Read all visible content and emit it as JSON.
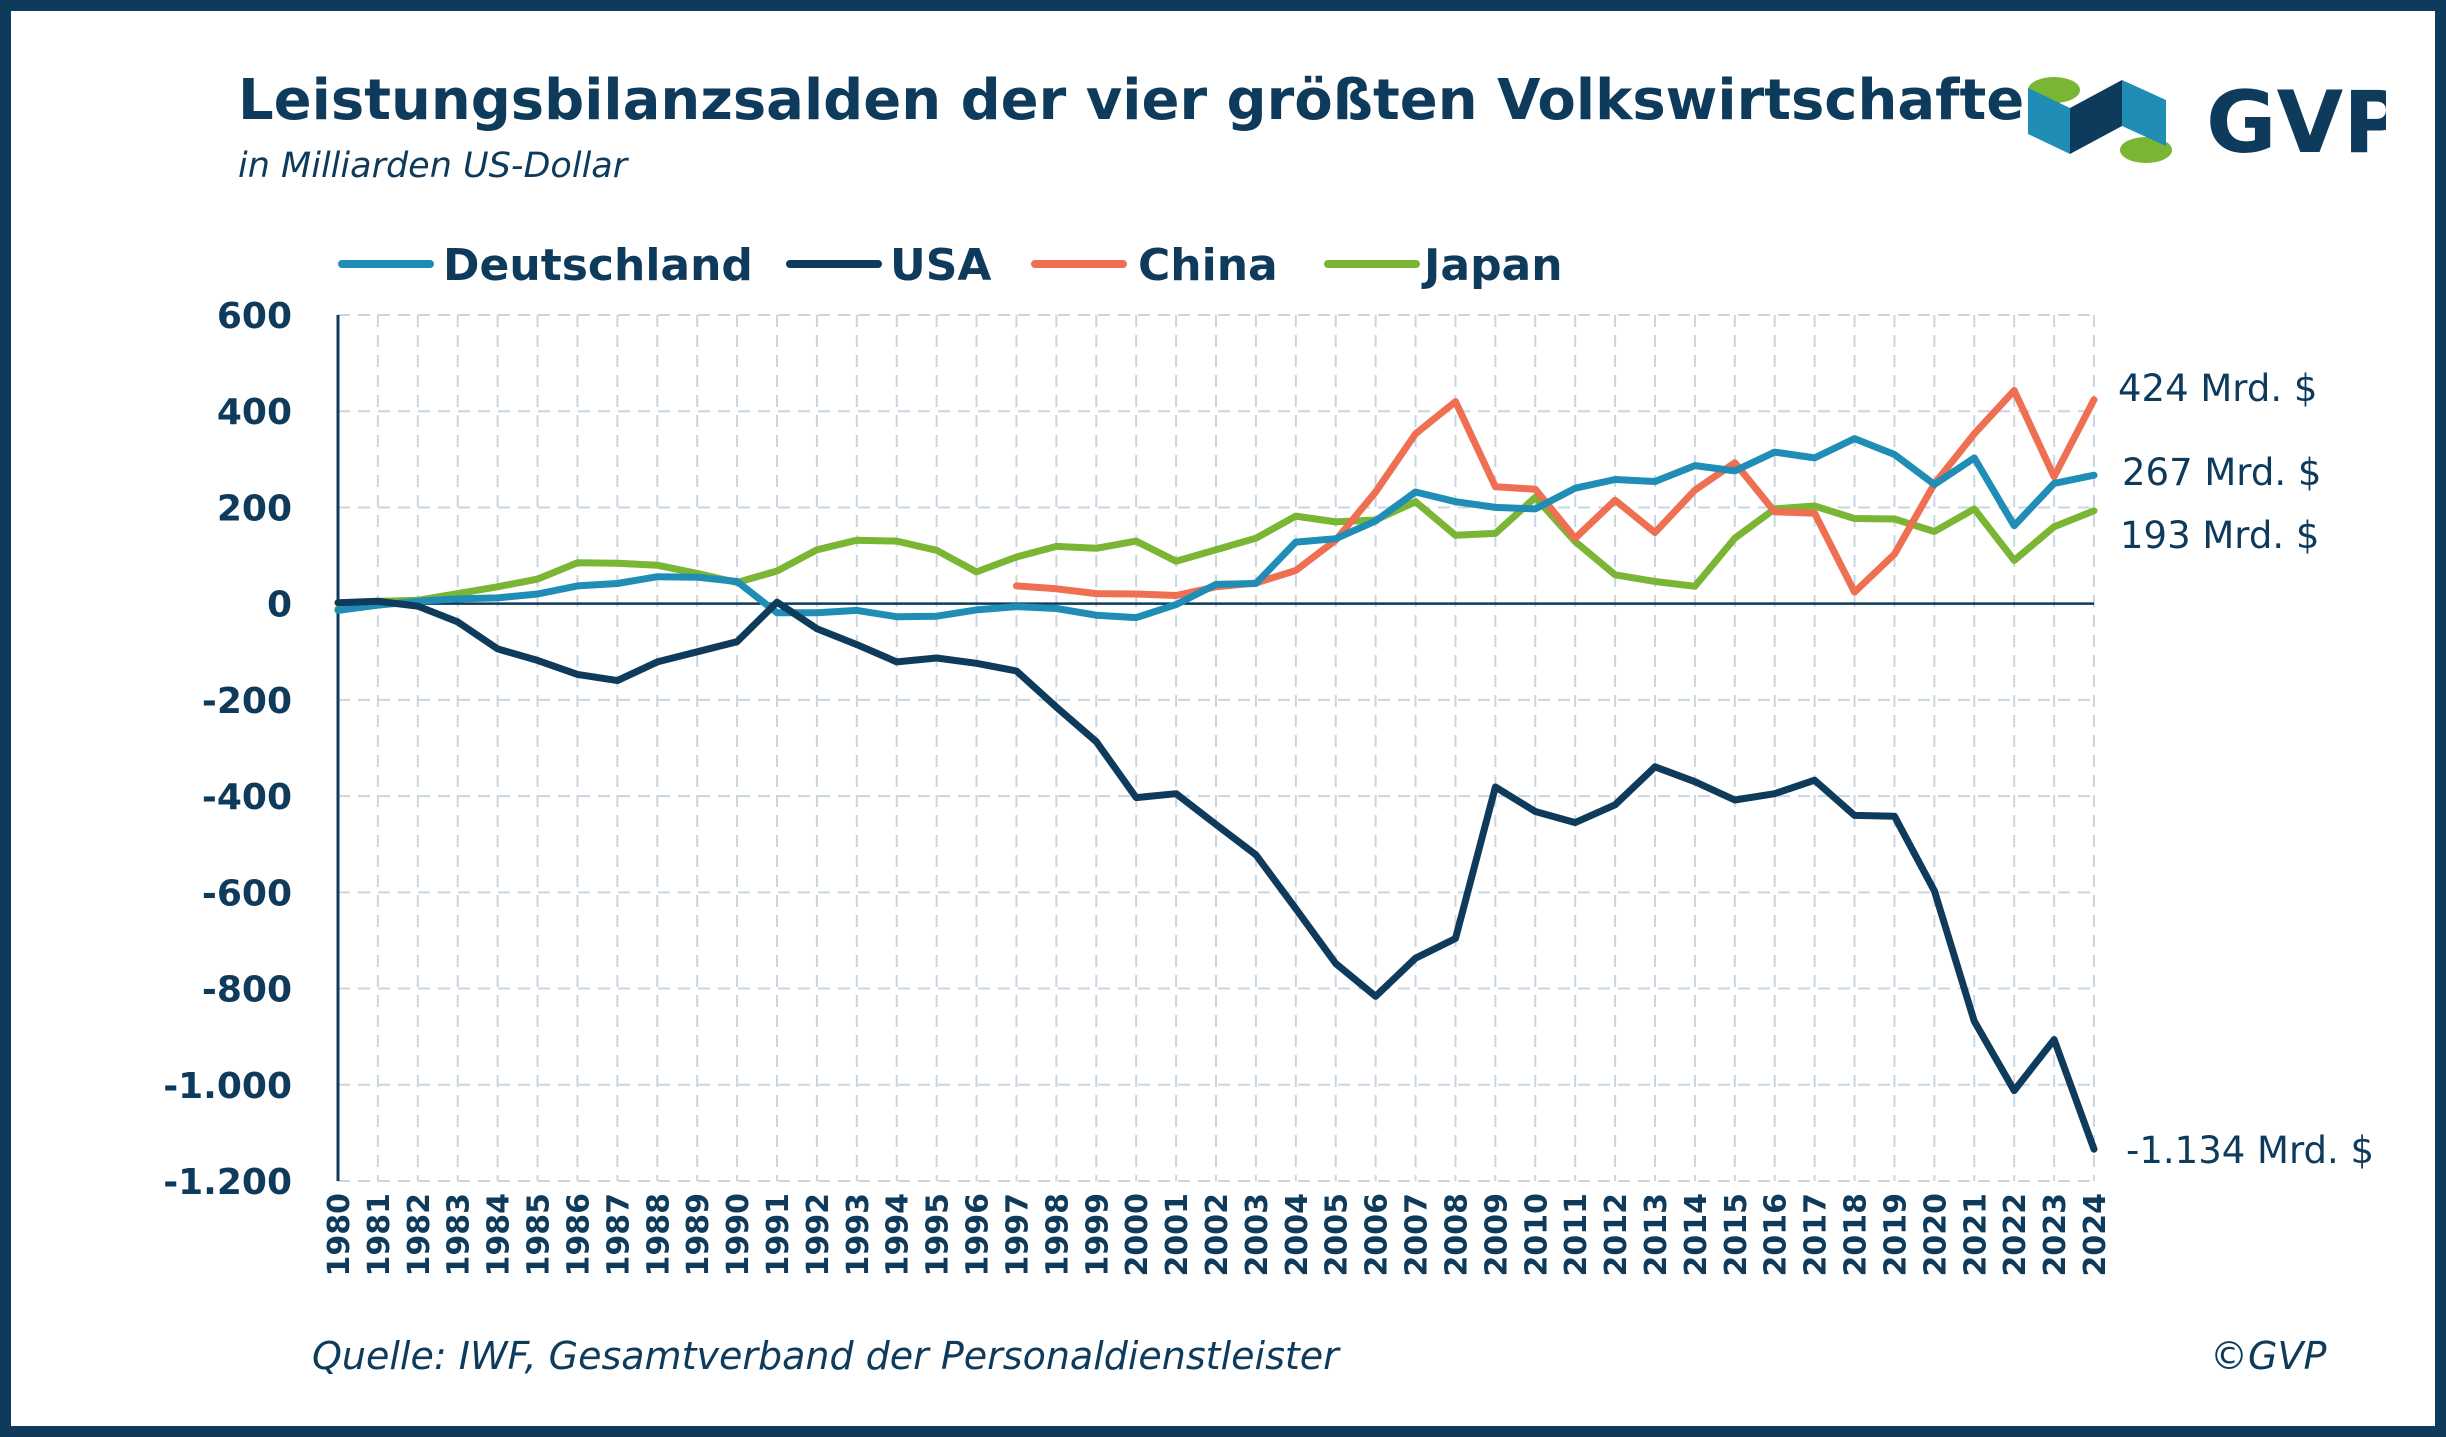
{
  "header": {
    "title": "Leistungsbilanzsalden der vier größten Volkswirtschaften",
    "subtitle": "in Milliarden US-Dollar"
  },
  "logo": {
    "text": "GVP",
    "colors": {
      "blue": "#1f8db5",
      "dark": "#0e3a5b",
      "green": "#7ab534"
    }
  },
  "footer": {
    "source": "Quelle: IWF, Gesamtverband der Personaldienstleister",
    "copyright": "©GVP"
  },
  "chart_data": {
    "type": "line",
    "x": [
      "1980",
      "1981",
      "1982",
      "1983",
      "1984",
      "1985",
      "1986",
      "1987",
      "1988",
      "1989",
      "1990",
      "1991",
      "1992",
      "1993",
      "1994",
      "1995",
      "1996",
      "1997",
      "1998",
      "1999",
      "2000",
      "2001",
      "2002",
      "2003",
      "2004",
      "2005",
      "2006",
      "2007",
      "2008",
      "2009",
      "2010",
      "2011",
      "2012",
      "2013",
      "2014",
      "2015",
      "2016",
      "2017",
      "2018",
      "2019",
      "2020",
      "2021",
      "2022",
      "2023",
      "2024"
    ],
    "ylim": [
      -1200,
      600
    ],
    "yticks": [
      600,
      400,
      200,
      0,
      -200,
      -400,
      -600,
      -800,
      -1000,
      -1200
    ],
    "ytick_labels": [
      "600",
      "400",
      "200",
      "0",
      "-200",
      "-400",
      "-600",
      "-800",
      "-1.000",
      "-1.200"
    ],
    "grid": true,
    "legend_position": "top",
    "series": [
      {
        "name": "Deutschland",
        "color": "#1f8db5",
        "values": [
          -14,
          -3,
          5,
          10,
          12,
          20,
          37,
          42,
          56,
          55,
          46,
          -19,
          -19,
          -14,
          -27,
          -26,
          -13,
          -6,
          -10,
          -24,
          -29,
          -2,
          40,
          42,
          128,
          135,
          172,
          232,
          212,
          200,
          197,
          240,
          258,
          254,
          287,
          276,
          315,
          303,
          343,
          310,
          248,
          303,
          162,
          250,
          267
        ]
      },
      {
        "name": "USA",
        "color": "#0e3a5b",
        "values": [
          2,
          5,
          -5,
          -38,
          -94,
          -118,
          -147,
          -160,
          -121,
          -100,
          -79,
          3,
          -52,
          -85,
          -121,
          -113,
          -124,
          -140,
          -215,
          -287,
          -403,
          -395,
          -459,
          -522,
          -634,
          -748,
          -816,
          -737,
          -696,
          -381,
          -432,
          -455,
          -418,
          -339,
          -370,
          -408,
          -395,
          -367,
          -440,
          -442,
          -597,
          -868,
          -1012,
          -906,
          -1134
        ]
      },
      {
        "name": "China",
        "color": "#ee6f52",
        "values": [
          null,
          null,
          null,
          null,
          null,
          null,
          null,
          null,
          null,
          null,
          null,
          null,
          null,
          null,
          null,
          null,
          null,
          37,
          31,
          21,
          20,
          17,
          35,
          43,
          69,
          132,
          232,
          353,
          420,
          243,
          238,
          136,
          215,
          148,
          236,
          293,
          191,
          188,
          24,
          103,
          249,
          353,
          443,
          264,
          424
        ]
      },
      {
        "name": "Japan",
        "color": "#7ab534",
        "values": [
          -11,
          5,
          7,
          21,
          35,
          51,
          85,
          84,
          80,
          63,
          44,
          68,
          112,
          132,
          130,
          111,
          66,
          97,
          119,
          115,
          130,
          88,
          112,
          136,
          182,
          170,
          174,
          212,
          142,
          146,
          221,
          129,
          60,
          46,
          36,
          136,
          197,
          203,
          177,
          176,
          150,
          197,
          90,
          160,
          193
        ]
      }
    ],
    "end_labels": [
      {
        "series": "China",
        "text": "424 Mrd. $"
      },
      {
        "series": "Deutschland",
        "text": "267 Mrd. $"
      },
      {
        "series": "Japan",
        "text": "193 Mrd. $"
      },
      {
        "series": "USA",
        "text": "-1.134 Mrd. $"
      }
    ]
  }
}
